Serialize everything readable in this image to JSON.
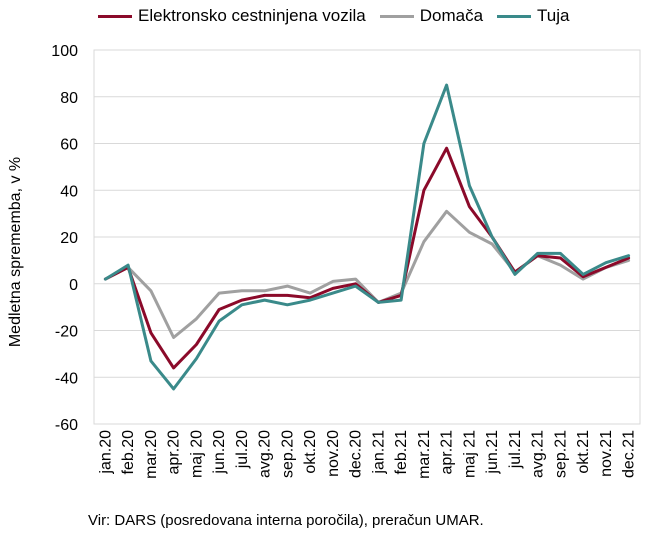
{
  "chart_data": {
    "type": "line",
    "xlabel": "",
    "ylabel": "Medletna sprememba, v %",
    "ylim": [
      -60,
      100
    ],
    "yticks": [
      -60,
      -40,
      -20,
      0,
      20,
      40,
      60,
      80,
      100
    ],
    "grid": "horizontal",
    "legend_position": "top",
    "categories": [
      "jan.20",
      "feb.20",
      "mar.20",
      "apr.20",
      "maj 20",
      "jun.20",
      "jul.20",
      "avg.20",
      "sep.20",
      "okt.20",
      "nov.20",
      "dec.20",
      "jan.21",
      "feb.21",
      "mar.21",
      "apr.21",
      "maj 21",
      "jun.21",
      "jul.21",
      "avg.21",
      "sep.21",
      "okt.21",
      "nov.21",
      "dec.21"
    ],
    "series": [
      {
        "name": "Elektronsko cestninjena vozila",
        "color": "#8b0a2a",
        "values": [
          2,
          7,
          -21,
          -36,
          -26,
          -11,
          -7,
          -5,
          -5,
          -6,
          -2,
          0,
          -8,
          -5,
          40,
          58,
          33,
          20,
          5,
          12,
          11,
          3,
          7,
          11
        ]
      },
      {
        "name": "Domača",
        "color": "#a0a0a0",
        "values": [
          2,
          7,
          -3,
          -23,
          -15,
          -4,
          -3,
          -3,
          -1,
          -4,
          1,
          2,
          -8,
          -4,
          18,
          31,
          22,
          17,
          5,
          12,
          8,
          2,
          7,
          10
        ]
      },
      {
        "name": "Tuja",
        "color": "#3a8a8a",
        "values": [
          2,
          8,
          -33,
          -45,
          -32,
          -16,
          -9,
          -7,
          -9,
          -7,
          -4,
          -1,
          -8,
          -7,
          60,
          85,
          42,
          20,
          4,
          13,
          13,
          4,
          9,
          12
        ]
      }
    ],
    "source": "Vir: DARS (posredovana interna poročila), preračun UMAR."
  }
}
